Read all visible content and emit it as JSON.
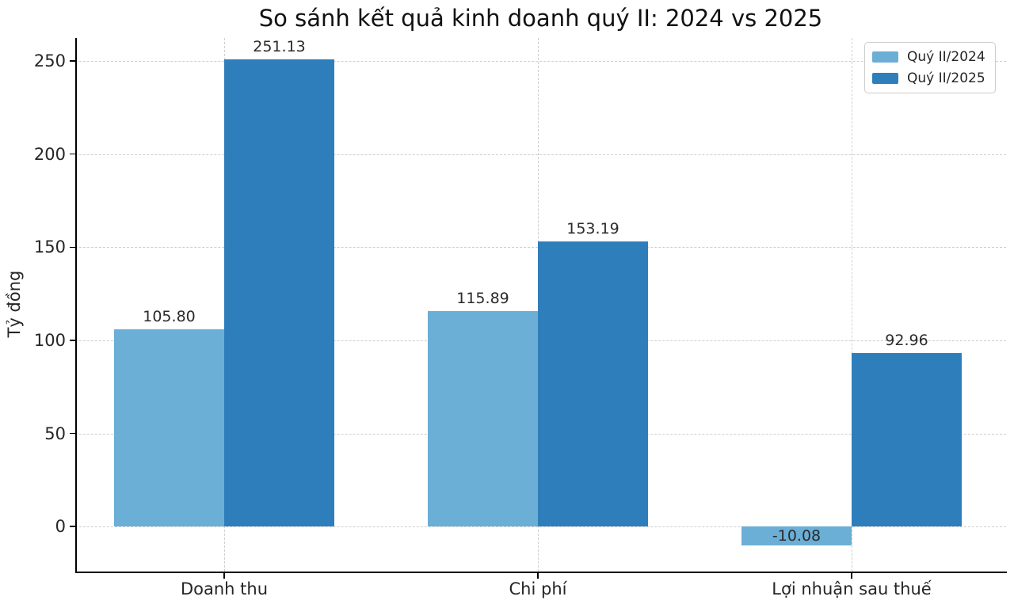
{
  "chart_data": {
    "type": "bar",
    "title": "So sánh kết quả kinh doanh quý II: 2024 vs 2025",
    "ylabel": "Tỷ đồng",
    "xlabel": "",
    "categories": [
      "Doanh thu",
      "Chi phí",
      "Lợi nhuận sau thuế"
    ],
    "series": [
      {
        "name": "Quý II/2024",
        "color": "#6baed6",
        "values": [
          105.8,
          115.89,
          -10.08
        ]
      },
      {
        "name": "Quý II/2025",
        "color": "#2f7ebc",
        "values": [
          251.13,
          153.19,
          92.96
        ]
      }
    ],
    "value_label_format": "2-decimals",
    "yticks": [
      0,
      50,
      100,
      150,
      200,
      250
    ],
    "ylim": [
      -24.2,
      262.4
    ],
    "grid": "dashed-both-axes",
    "legend_position": "upper right",
    "colors": {
      "q2_2024": "#6baed6",
      "q2_2025": "#2f7ebc",
      "grid": "#cfcfcf",
      "spine": "#000000",
      "text": "#262626"
    }
  }
}
